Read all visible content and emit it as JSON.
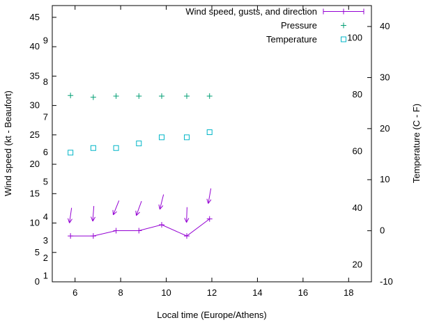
{
  "legend": {
    "items": [
      {
        "key": "wind",
        "label": "Wind speed, gusts, and direction"
      },
      {
        "key": "pressure",
        "label": "Pressure"
      },
      {
        "key": "temperature",
        "label": "Temperature"
      }
    ]
  },
  "colors": {
    "wind": "#9400d3",
    "pressure": "#009e73",
    "temperature": "#00b5c7",
    "axis": "#000000",
    "background": "#ffffff"
  },
  "chart_data": {
    "type": "line",
    "title": "",
    "xlabel": "Local time (Europe/Athens)",
    "ylabel_left": "Wind speed (kt - Beaufort)",
    "ylabel_right": "Temperature (C - F)",
    "xlim": [
      5,
      19
    ],
    "x_ticks": [
      6,
      8,
      10,
      12,
      14,
      16,
      18
    ],
    "ylim_left": [
      0,
      47
    ],
    "y_ticks_left": [
      0,
      5,
      10,
      15,
      20,
      25,
      30,
      35,
      40,
      45
    ],
    "ylim_right": [
      -10,
      44.1
    ],
    "y_ticks_right": [
      -10,
      0,
      10,
      20,
      30,
      40
    ],
    "beaufort_scale_labels": [
      {
        "label": "1",
        "kt": 1
      },
      {
        "label": "2",
        "kt": 4
      },
      {
        "label": "3",
        "kt": 7
      },
      {
        "label": "4",
        "kt": 11
      },
      {
        "label": "5",
        "kt": 17
      },
      {
        "label": "6",
        "kt": 22
      },
      {
        "label": "7",
        "kt": 28
      },
      {
        "label": "8",
        "kt": 34
      },
      {
        "label": "9",
        "kt": 41
      }
    ],
    "fahrenheit_scale_labels": [
      {
        "label": "20",
        "f": 20
      },
      {
        "label": "40",
        "f": 40
      },
      {
        "label": "60",
        "f": 60
      },
      {
        "label": "80",
        "f": 80
      },
      {
        "label": "100",
        "f": 100
      }
    ],
    "x": [
      5.8,
      6.8,
      7.8,
      8.8,
      9.8,
      10.9,
      11.9
    ],
    "series": [
      {
        "name": "wind-speed",
        "axis": "left",
        "color": "#9400d3",
        "marker": "plus",
        "line": true,
        "values": [
          7.8,
          7.8,
          8.7,
          8.7,
          9.7,
          7.8,
          10.7
        ]
      },
      {
        "name": "wind-gust-direction",
        "axis": "left",
        "color": "#9400d3",
        "marker": "arrow-down",
        "line": false,
        "values": [
          11.3,
          11.6,
          12.6,
          12.5,
          13.6,
          11.4,
          14.6
        ],
        "tilt_deg": [
          8,
          4,
          22,
          20,
          14,
          2,
          10
        ]
      },
      {
        "name": "pressure",
        "axis": "left",
        "color": "#009e73",
        "marker": "plus",
        "line": false,
        "values": [
          31.7,
          31.4,
          31.6,
          31.6,
          31.6,
          31.6,
          31.6
        ]
      },
      {
        "name": "temperature",
        "axis": "right",
        "color": "#00b5c7",
        "marker": "square-open",
        "line": false,
        "values": [
          15.3,
          16.2,
          16.2,
          17.1,
          18.3,
          18.3,
          19.3
        ]
      }
    ]
  }
}
